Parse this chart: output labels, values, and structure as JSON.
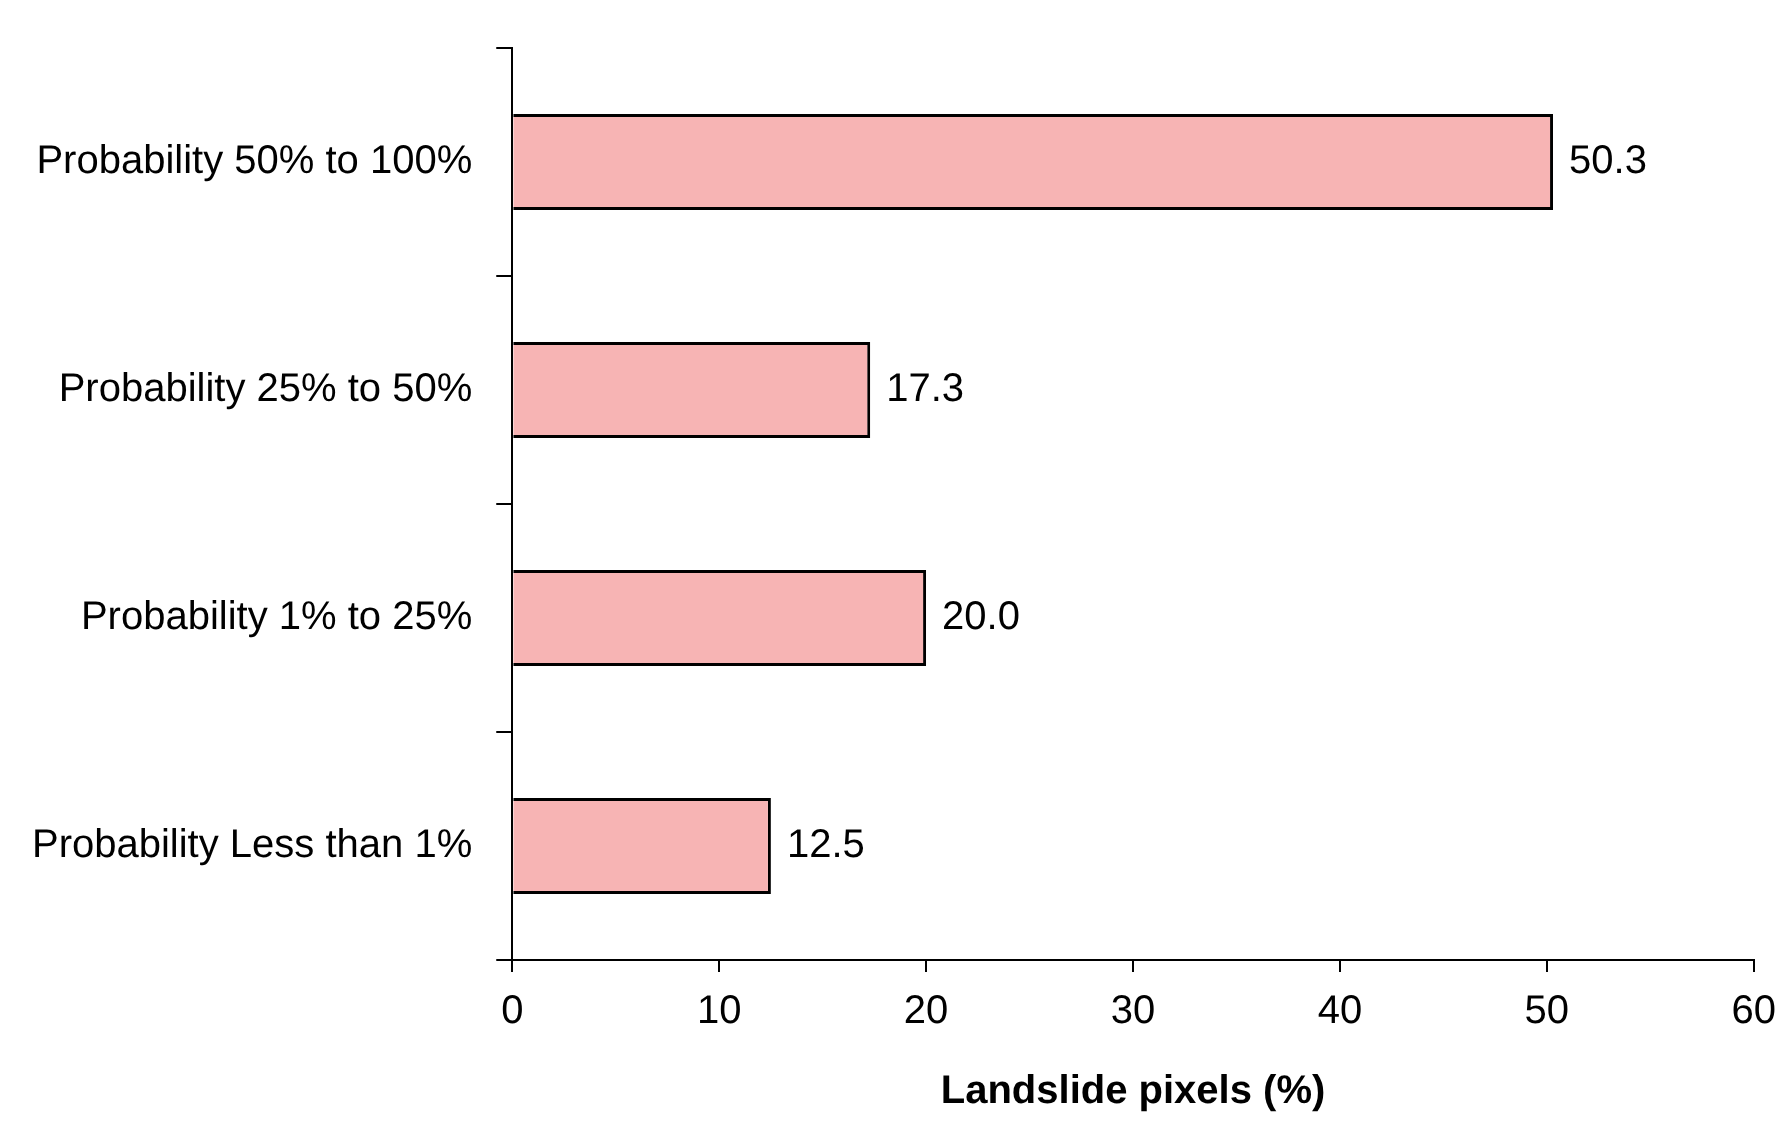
{
  "chart_data": {
    "type": "bar",
    "orientation": "horizontal",
    "xlabel": "Landslide pixels (%)",
    "categories": [
      "Probability 50% to 100%",
      "Probability 25% to 50%",
      "Probability 1% to 25%",
      "Probability Less than 1%"
    ],
    "values": [
      50.3,
      17.3,
      20.0,
      12.5
    ],
    "value_labels": [
      "50.3",
      "17.3",
      "20.0",
      "12.5"
    ],
    "color": "#f7b4b4",
    "xlim": [
      0,
      60
    ],
    "xticks": [
      0,
      10,
      20,
      30,
      40,
      50,
      60
    ]
  }
}
